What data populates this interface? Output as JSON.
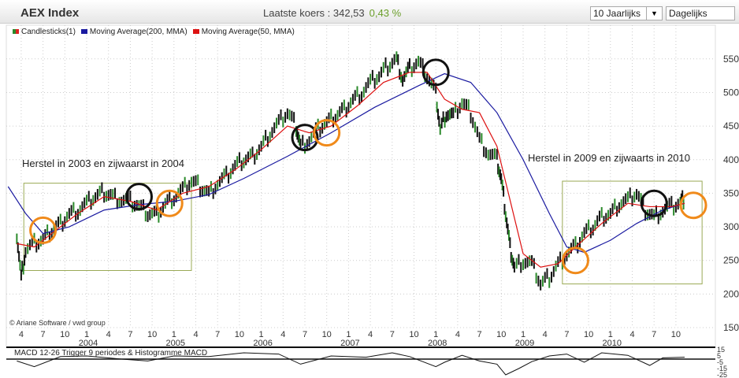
{
  "header": {
    "title": "AEX Index",
    "quote_label": "Laatste koers : 342,53",
    "change": "0,43 %",
    "period_select": "10 Jaarlijks",
    "frequency_select": "Dagelijks"
  },
  "legend": [
    {
      "label": "Candlesticks(1)",
      "color": "#2a8a2a"
    },
    {
      "label": "Moving Average(200, MMA)",
      "color": "#1a1aa0"
    },
    {
      "label": "Moving Average(50, MMA)",
      "color": "#dd1111"
    }
  ],
  "credit": "© Ariane Software / vwd group",
  "annotations": {
    "left": "Herstel in 2003 en zijwaarst in 2004",
    "right": "Herstel in 2009 en zijwaarts in 2010"
  },
  "macd_title": "MACD 12-26   Trigger 9 periodes & Histogramme MACD",
  "chart_data": [
    {
      "type": "line",
      "title": "AEX Index",
      "ylim": [
        150,
        575
      ],
      "yticks": [
        150,
        200,
        250,
        300,
        350,
        400,
        450,
        500,
        550
      ],
      "xlim": [
        2003.1,
        2011.15
      ],
      "month_ticks": [
        "4",
        "7",
        "10",
        "1",
        "4",
        "7",
        "10",
        "1",
        "4",
        "7",
        "10",
        "1",
        "4",
        "7",
        "10",
        "1",
        "4",
        "7",
        "10",
        "1",
        "4",
        "7",
        "10",
        "1",
        "4",
        "7",
        "10",
        "1",
        "4",
        "7",
        "10"
      ],
      "year_labels": [
        "2004",
        "2005",
        "2006",
        "2007",
        "2008",
        "2009",
        "2010"
      ],
      "series": [
        {
          "name": "Candlesticks(1)",
          "x": [
            2003.2,
            2003.25,
            2003.3,
            2003.4,
            2003.5,
            2003.6,
            2003.7,
            2003.8,
            2003.9,
            2004.0,
            2004.1,
            2004.2,
            2004.3,
            2004.4,
            2004.5,
            2004.6,
            2004.7,
            2004.8,
            2004.9,
            2005.0,
            2005.1,
            2005.2,
            2005.3,
            2005.4,
            2005.5,
            2005.6,
            2005.7,
            2005.8,
            2005.9,
            2006.0,
            2006.1,
            2006.2,
            2006.3,
            2006.4,
            2006.45,
            2006.55,
            2006.65,
            2006.75,
            2006.85,
            2006.95,
            2007.05,
            2007.15,
            2007.25,
            2007.35,
            2007.45,
            2007.55,
            2007.62,
            2007.7,
            2007.8,
            2007.9,
            2008.0,
            2008.05,
            2008.12,
            2008.2,
            2008.3,
            2008.4,
            2008.5,
            2008.6,
            2008.7,
            2008.75,
            2008.8,
            2008.85,
            2008.9,
            2009.0,
            2009.1,
            2009.2,
            2009.3,
            2009.4,
            2009.5,
            2009.6,
            2009.7,
            2009.8,
            2009.9,
            2010.0,
            2010.1,
            2010.2,
            2010.3,
            2010.4,
            2010.5,
            2010.6,
            2010.7,
            2010.8,
            2010.85
          ],
          "y": [
            290,
            225,
            265,
            275,
            280,
            295,
            305,
            320,
            325,
            335,
            345,
            352,
            345,
            340,
            338,
            330,
            320,
            318,
            335,
            345,
            355,
            368,
            360,
            350,
            365,
            375,
            390,
            400,
            405,
            420,
            440,
            455,
            470,
            450,
            420,
            430,
            445,
            455,
            465,
            475,
            490,
            500,
            515,
            525,
            540,
            550,
            520,
            535,
            545,
            525,
            500,
            445,
            470,
            465,
            485,
            470,
            430,
            410,
            400,
            370,
            320,
            270,
            240,
            250,
            245,
            215,
            225,
            245,
            260,
            270,
            290,
            300,
            315,
            320,
            335,
            340,
            350,
            325,
            315,
            325,
            330,
            335,
            342
          ]
        },
        {
          "name": "Moving Average(200, MMA)",
          "x": [
            2003.1,
            2003.3,
            2003.5,
            2003.8,
            2004.2,
            2004.6,
            2005.0,
            2005.4,
            2005.8,
            2006.3,
            2006.8,
            2007.3,
            2007.8,
            2008.1,
            2008.4,
            2008.7,
            2009.0,
            2009.3,
            2009.5,
            2009.7,
            2010.0,
            2010.3,
            2010.6,
            2010.85
          ],
          "y": [
            360,
            320,
            290,
            300,
            325,
            333,
            338,
            348,
            372,
            405,
            440,
            478,
            510,
            528,
            515,
            470,
            400,
            320,
            270,
            262,
            280,
            305,
            325,
            335
          ]
        },
        {
          "name": "Moving Average(50, MMA)",
          "x": [
            2003.2,
            2003.4,
            2003.6,
            2003.9,
            2004.2,
            2004.5,
            2004.8,
            2005.1,
            2005.4,
            2005.7,
            2006.0,
            2006.3,
            2006.55,
            2006.8,
            2007.1,
            2007.4,
            2007.7,
            2007.9,
            2008.1,
            2008.3,
            2008.5,
            2008.7,
            2008.85,
            2009.0,
            2009.2,
            2009.4,
            2009.6,
            2009.9,
            2010.2,
            2010.45,
            2010.7,
            2010.85
          ],
          "y": [
            275,
            270,
            290,
            320,
            345,
            338,
            325,
            350,
            360,
            385,
            415,
            450,
            440,
            450,
            480,
            515,
            530,
            530,
            490,
            475,
            470,
            420,
            340,
            260,
            240,
            245,
            270,
            305,
            335,
            330,
            330,
            335
          ]
        }
      ]
    },
    {
      "type": "line",
      "title": "MACD 12-26",
      "ylim": [
        -30,
        18
      ],
      "yticks": [
        15,
        5,
        -5,
        -15,
        -25
      ],
      "series": [
        {
          "name": "MACD",
          "x": [
            2003.2,
            2003.4,
            2003.7,
            2004.0,
            2004.4,
            2004.7,
            2005.0,
            2005.4,
            2005.8,
            2006.2,
            2006.45,
            2006.8,
            2007.2,
            2007.5,
            2007.7,
            2008.0,
            2008.1,
            2008.3,
            2008.5,
            2008.7,
            2008.8,
            2008.95,
            2009.1,
            2009.3,
            2009.5,
            2009.7,
            2009.9,
            2010.2,
            2010.45,
            2010.6,
            2010.85
          ],
          "y": [
            -3,
            -12,
            4,
            5,
            0,
            -3,
            5,
            4,
            10,
            8,
            -8,
            5,
            3,
            10,
            4,
            -12,
            -5,
            6,
            -3,
            -8,
            -25,
            -15,
            -4,
            5,
            8,
            -5,
            10,
            6,
            -10,
            2,
            3
          ]
        }
      ]
    }
  ]
}
